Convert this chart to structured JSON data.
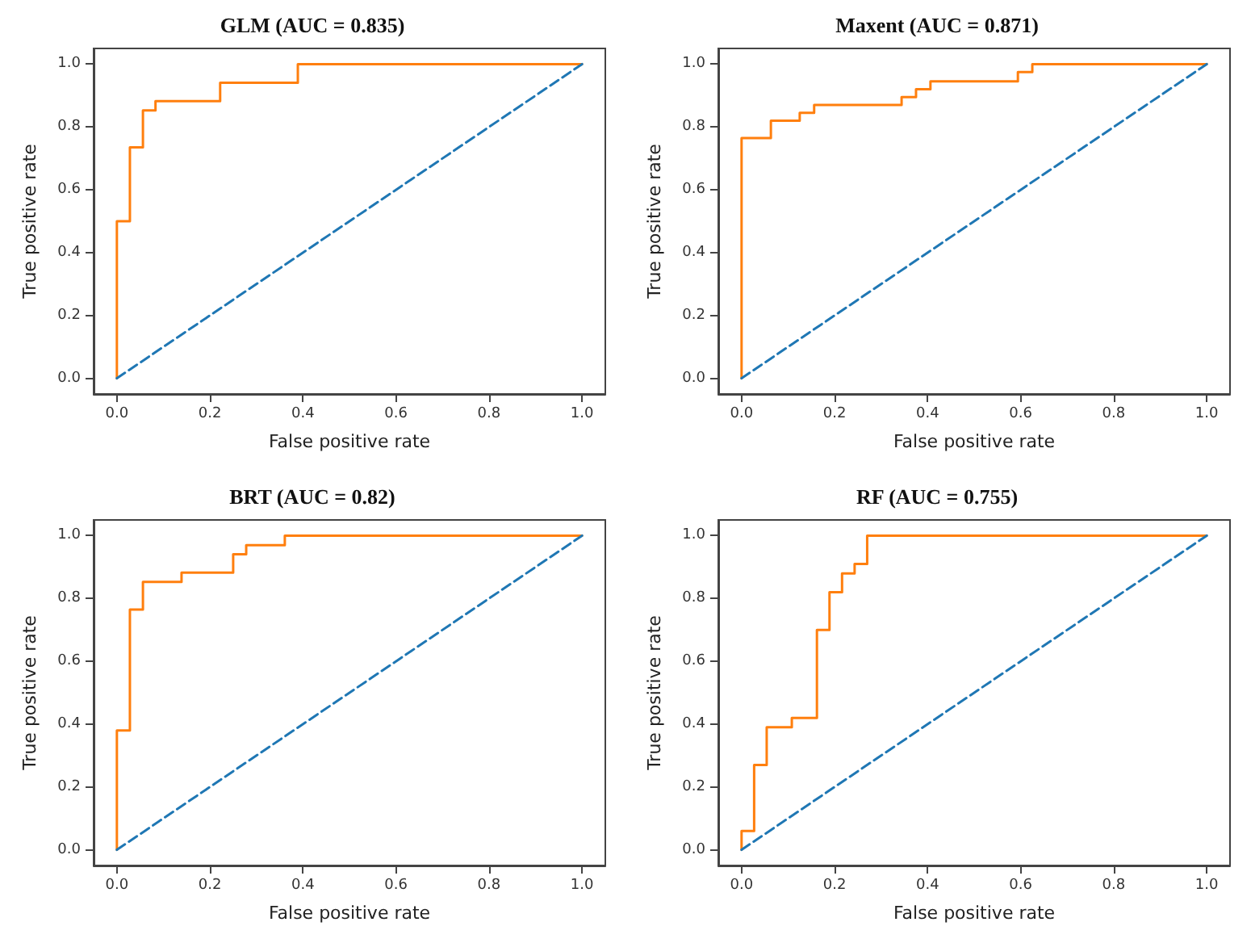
{
  "chart_data": [
    {
      "type": "line",
      "title": "GLM (AUC = 0.835)",
      "xlabel": "False positive rate",
      "ylabel": "True positive rate",
      "xlim": [
        -0.05,
        1.05
      ],
      "ylim": [
        -0.05,
        1.05
      ],
      "xticks": [
        {
          "value": 0,
          "label": "0.0"
        },
        {
          "value": 0.2,
          "label": "0.2"
        },
        {
          "value": 0.4,
          "label": "0.4"
        },
        {
          "value": 0.6,
          "label": "0.6"
        },
        {
          "value": 0.8,
          "label": "0.8"
        },
        {
          "value": 1,
          "label": "1.0"
        }
      ],
      "yticks": [
        {
          "value": 0,
          "label": "0.0"
        },
        {
          "value": 0.2,
          "label": "0.2"
        },
        {
          "value": 0.4,
          "label": "0.4"
        },
        {
          "value": 0.6,
          "label": "0.6"
        },
        {
          "value": 0.8,
          "label": "0.8"
        },
        {
          "value": 1,
          "label": "1.0"
        }
      ],
      "grid": false,
      "series": [
        {
          "color": "#ff7f0e",
          "line_style": "solid",
          "x": [
            0,
            0,
            0.028,
            0.028,
            0.056,
            0.056,
            0.083,
            0.083,
            0.222,
            0.222,
            0.389,
            0.389,
            1
          ],
          "values": [
            0,
            0.5,
            0.5,
            0.735,
            0.735,
            0.853,
            0.853,
            0.882,
            0.882,
            0.941,
            0.941,
            1,
            1
          ]
        },
        {
          "color": "#1f77b4",
          "line_style": "dashed",
          "x": [
            0,
            1
          ],
          "values": [
            0,
            1
          ]
        }
      ]
    },
    {
      "type": "line",
      "title": "Maxent (AUC = 0.871)",
      "xlabel": "False positive rate",
      "ylabel": "True positive rate",
      "xlim": [
        -0.05,
        1.05
      ],
      "ylim": [
        -0.05,
        1.05
      ],
      "xticks": [
        {
          "value": 0,
          "label": "0.0"
        },
        {
          "value": 0.2,
          "label": "0.2"
        },
        {
          "value": 0.4,
          "label": "0.4"
        },
        {
          "value": 0.6,
          "label": "0.6"
        },
        {
          "value": 0.8,
          "label": "0.8"
        },
        {
          "value": 1,
          "label": "1.0"
        }
      ],
      "yticks": [
        {
          "value": 0,
          "label": "0.0"
        },
        {
          "value": 0.2,
          "label": "0.2"
        },
        {
          "value": 0.4,
          "label": "0.4"
        },
        {
          "value": 0.6,
          "label": "0.6"
        },
        {
          "value": 0.8,
          "label": "0.8"
        },
        {
          "value": 1,
          "label": "1.0"
        }
      ],
      "grid": false,
      "series": [
        {
          "color": "#ff7f0e",
          "line_style": "solid",
          "x": [
            0,
            0,
            0.063,
            0.063,
            0.125,
            0.125,
            0.156,
            0.156,
            0.344,
            0.344,
            0.375,
            0.375,
            0.406,
            0.406,
            0.594,
            0.594,
            0.625,
            0.625,
            1
          ],
          "values": [
            0,
            0.765,
            0.765,
            0.82,
            0.82,
            0.845,
            0.845,
            0.87,
            0.87,
            0.895,
            0.895,
            0.92,
            0.92,
            0.945,
            0.945,
            0.975,
            0.975,
            1,
            1
          ]
        },
        {
          "color": "#1f77b4",
          "line_style": "dashed",
          "x": [
            0,
            1
          ],
          "values": [
            0,
            1
          ]
        }
      ]
    },
    {
      "type": "line",
      "title": "BRT (AUC = 0.82)",
      "xlabel": "False positive rate",
      "ylabel": "True positive rate",
      "xlim": [
        -0.05,
        1.05
      ],
      "ylim": [
        -0.05,
        1.05
      ],
      "xticks": [
        {
          "value": 0,
          "label": "0.0"
        },
        {
          "value": 0.2,
          "label": "0.2"
        },
        {
          "value": 0.4,
          "label": "0.4"
        },
        {
          "value": 0.6,
          "label": "0.6"
        },
        {
          "value": 0.8,
          "label": "0.8"
        },
        {
          "value": 1,
          "label": "1.0"
        }
      ],
      "yticks": [
        {
          "value": 0,
          "label": "0.0"
        },
        {
          "value": 0.2,
          "label": "0.2"
        },
        {
          "value": 0.4,
          "label": "0.4"
        },
        {
          "value": 0.6,
          "label": "0.6"
        },
        {
          "value": 0.8,
          "label": "0.8"
        },
        {
          "value": 1,
          "label": "1.0"
        }
      ],
      "grid": false,
      "series": [
        {
          "color": "#ff7f0e",
          "line_style": "solid",
          "x": [
            0,
            0,
            0.028,
            0.028,
            0.056,
            0.056,
            0.139,
            0.139,
            0.25,
            0.25,
            0.278,
            0.278,
            0.361,
            0.361,
            1
          ],
          "values": [
            0,
            0.38,
            0.38,
            0.765,
            0.765,
            0.853,
            0.853,
            0.882,
            0.882,
            0.941,
            0.941,
            0.97,
            0.97,
            1,
            1
          ]
        },
        {
          "color": "#1f77b4",
          "line_style": "dashed",
          "x": [
            0,
            1
          ],
          "values": [
            0,
            1
          ]
        }
      ]
    },
    {
      "type": "line",
      "title": "RF (AUC = 0.755)",
      "xlabel": "False positive rate",
      "ylabel": "True positive rate",
      "xlim": [
        -0.05,
        1.05
      ],
      "ylim": [
        -0.05,
        1.05
      ],
      "xticks": [
        {
          "value": 0,
          "label": "0.0"
        },
        {
          "value": 0.2,
          "label": "0.2"
        },
        {
          "value": 0.4,
          "label": "0.4"
        },
        {
          "value": 0.6,
          "label": "0.6"
        },
        {
          "value": 0.8,
          "label": "0.8"
        },
        {
          "value": 1,
          "label": "1.0"
        }
      ],
      "yticks": [
        {
          "value": 0,
          "label": "0.0"
        },
        {
          "value": 0.2,
          "label": "0.2"
        },
        {
          "value": 0.4,
          "label": "0.4"
        },
        {
          "value": 0.6,
          "label": "0.6"
        },
        {
          "value": 0.8,
          "label": "0.8"
        },
        {
          "value": 1,
          "label": "1.0"
        }
      ],
      "grid": false,
      "series": [
        {
          "color": "#ff7f0e",
          "line_style": "solid",
          "x": [
            0,
            0,
            0.027,
            0.027,
            0.054,
            0.054,
            0.108,
            0.108,
            0.162,
            0.162,
            0.189,
            0.189,
            0.216,
            0.216,
            0.243,
            0.243,
            0.27,
            0.27,
            1
          ],
          "values": [
            0,
            0.06,
            0.06,
            0.27,
            0.27,
            0.39,
            0.39,
            0.42,
            0.42,
            0.7,
            0.7,
            0.82,
            0.82,
            0.88,
            0.88,
            0.91,
            0.91,
            1,
            1
          ]
        },
        {
          "color": "#1f77b4",
          "line_style": "dashed",
          "x": [
            0,
            1
          ],
          "values": [
            0,
            1
          ]
        }
      ]
    }
  ]
}
